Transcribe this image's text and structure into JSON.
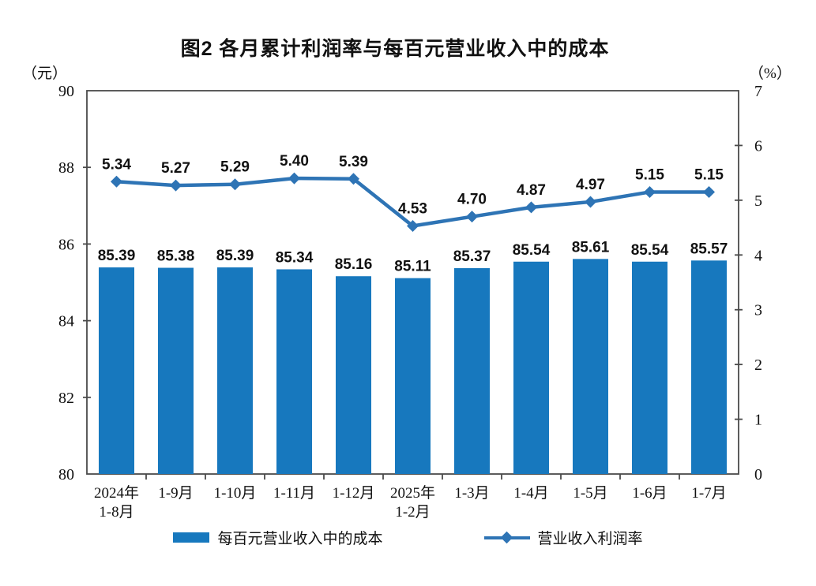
{
  "chart_data": {
    "type": "bar+line",
    "title": "图2 各月累计利润率与每百元营业收入中的成本",
    "categories": [
      [
        "2024年",
        "1-8月"
      ],
      [
        "1-9月"
      ],
      [
        "1-10月"
      ],
      [
        "1-11月"
      ],
      [
        "1-12月"
      ],
      [
        "2025年",
        "1-2月"
      ],
      [
        "1-3月"
      ],
      [
        "1-4月"
      ],
      [
        "1-5月"
      ],
      [
        "1-6月"
      ],
      [
        "1-7月"
      ]
    ],
    "series": [
      {
        "name": "每百元营业收入中的成本",
        "kind": "bar",
        "axis": "left",
        "color": "#1778BE",
        "values": [
          85.39,
          85.38,
          85.39,
          85.34,
          85.16,
          85.11,
          85.37,
          85.54,
          85.61,
          85.54,
          85.57
        ]
      },
      {
        "name": "营业收入利润率",
        "kind": "line",
        "axis": "right",
        "color": "#2E74B5",
        "values": [
          5.34,
          5.27,
          5.29,
          5.4,
          5.39,
          4.53,
          4.7,
          4.87,
          4.97,
          5.15,
          5.15
        ]
      }
    ],
    "left_axis": {
      "unit": "（元）",
      "min": 80,
      "max": 90,
      "ticks": [
        90,
        88,
        86,
        84,
        82,
        80
      ]
    },
    "right_axis": {
      "unit": "（%）",
      "min": 0,
      "max": 7,
      "ticks": [
        7,
        6,
        5,
        4,
        3,
        2,
        1,
        0
      ]
    },
    "legend": [
      {
        "label": "每百元营业收入中的成本",
        "marker": "bar-swatch"
      },
      {
        "label": "营业收入利润率",
        "marker": "line-diamond-swatch"
      }
    ],
    "style": {
      "axis_color": "#4a4a4a",
      "text_color": "#111111",
      "background": "#ffffff",
      "value_label_decimals": 2
    },
    "grid": "off",
    "legend_position": "bottom"
  }
}
